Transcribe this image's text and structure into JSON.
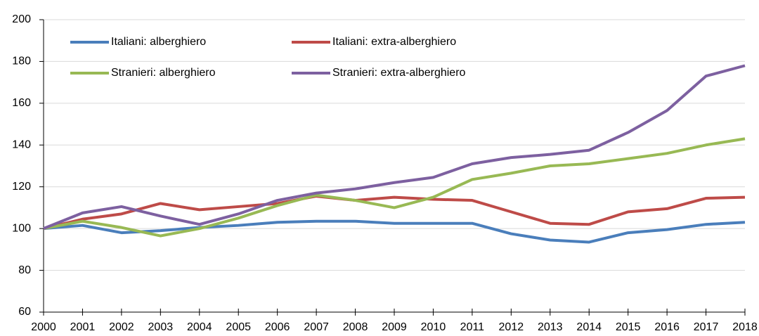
{
  "chart_data": {
    "type": "line",
    "x": [
      2000,
      2001,
      2002,
      2003,
      2004,
      2005,
      2006,
      2007,
      2008,
      2009,
      2010,
      2011,
      2012,
      2013,
      2014,
      2015,
      2016,
      2017,
      2018
    ],
    "xlim": [
      2000,
      2018
    ],
    "xticks": [
      2000,
      2001,
      2002,
      2003,
      2004,
      2005,
      2006,
      2007,
      2008,
      2009,
      2010,
      2011,
      2012,
      2013,
      2014,
      2015,
      2016,
      2017,
      2018
    ],
    "ylim": [
      60,
      200
    ],
    "yticks": [
      60,
      80,
      100,
      120,
      140,
      160,
      180,
      200
    ],
    "grid": true,
    "legend": "upper left",
    "series": [
      {
        "name": "Italiani: alberghiero",
        "color": "#4a7ebb",
        "values": [
          100,
          101.5,
          98,
          99,
          100.5,
          101.5,
          103,
          103.5,
          103.5,
          102.5,
          102.5,
          102.5,
          97.5,
          94.5,
          93.5,
          98,
          99.5,
          102,
          103
        ]
      },
      {
        "name": "Italiani: extra-alberghiero",
        "color": "#be4b48",
        "values": [
          100,
          104.5,
          107,
          112,
          109,
          110.5,
          112,
          115.5,
          113.5,
          115,
          114,
          113.5,
          108,
          102.5,
          102,
          108,
          109.5,
          114.5,
          115
        ]
      },
      {
        "name": "Stranieri: alberghiero",
        "color": "#98b954",
        "values": [
          100,
          103.5,
          100.5,
          96.5,
          100,
          105,
          111,
          116,
          113.5,
          110,
          115,
          123.5,
          126.5,
          130,
          131,
          133.5,
          136,
          140,
          143
        ]
      },
      {
        "name": "Stranieri: extra-alberghiero",
        "color": "#7d60a0",
        "values": [
          100,
          107.5,
          110.5,
          106,
          102,
          107,
          113.5,
          117,
          119,
          122,
          124.5,
          131,
          134,
          135.5,
          137.5,
          146,
          156.5,
          173,
          178
        ]
      }
    ]
  }
}
